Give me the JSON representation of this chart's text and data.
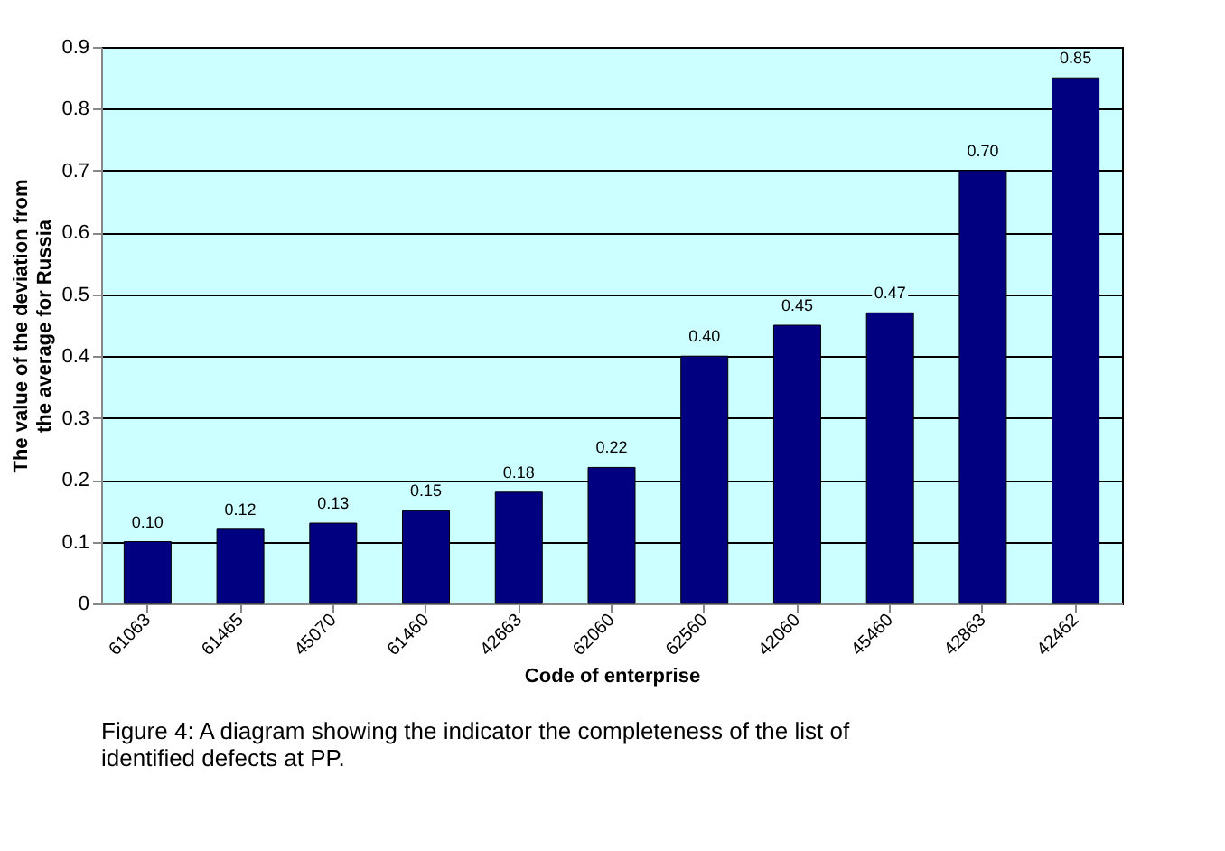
{
  "chart_data": {
    "type": "bar",
    "xlabel": "Code of enterprise",
    "ylabel": "The value of the deviation from the average for Russia",
    "categories": [
      "61063",
      "61465",
      "45070",
      "61460",
      "42663",
      "62060",
      "62560",
      "42060",
      "45460",
      "42863",
      "42462"
    ],
    "values": [
      0.1,
      0.12,
      0.13,
      0.15,
      0.18,
      0.22,
      0.4,
      0.45,
      0.47,
      0.7,
      0.85
    ],
    "value_labels": [
      "0.10",
      "0.12",
      "0.13",
      "0.15",
      "0.18",
      "0.22",
      "0.40",
      "0.45",
      "0.47",
      "0.70",
      "0.85"
    ],
    "color": "#000080",
    "ylim": [
      0,
      0.9
    ],
    "yticks": [
      0,
      0.1,
      0.2,
      0.3,
      0.4,
      0.5,
      0.6,
      0.7,
      0.8,
      0.9
    ],
    "grid": "y",
    "annotations": [
      "Figure 4: A diagram showing the indicator the completeness of the list of identified defects at PP."
    ]
  }
}
